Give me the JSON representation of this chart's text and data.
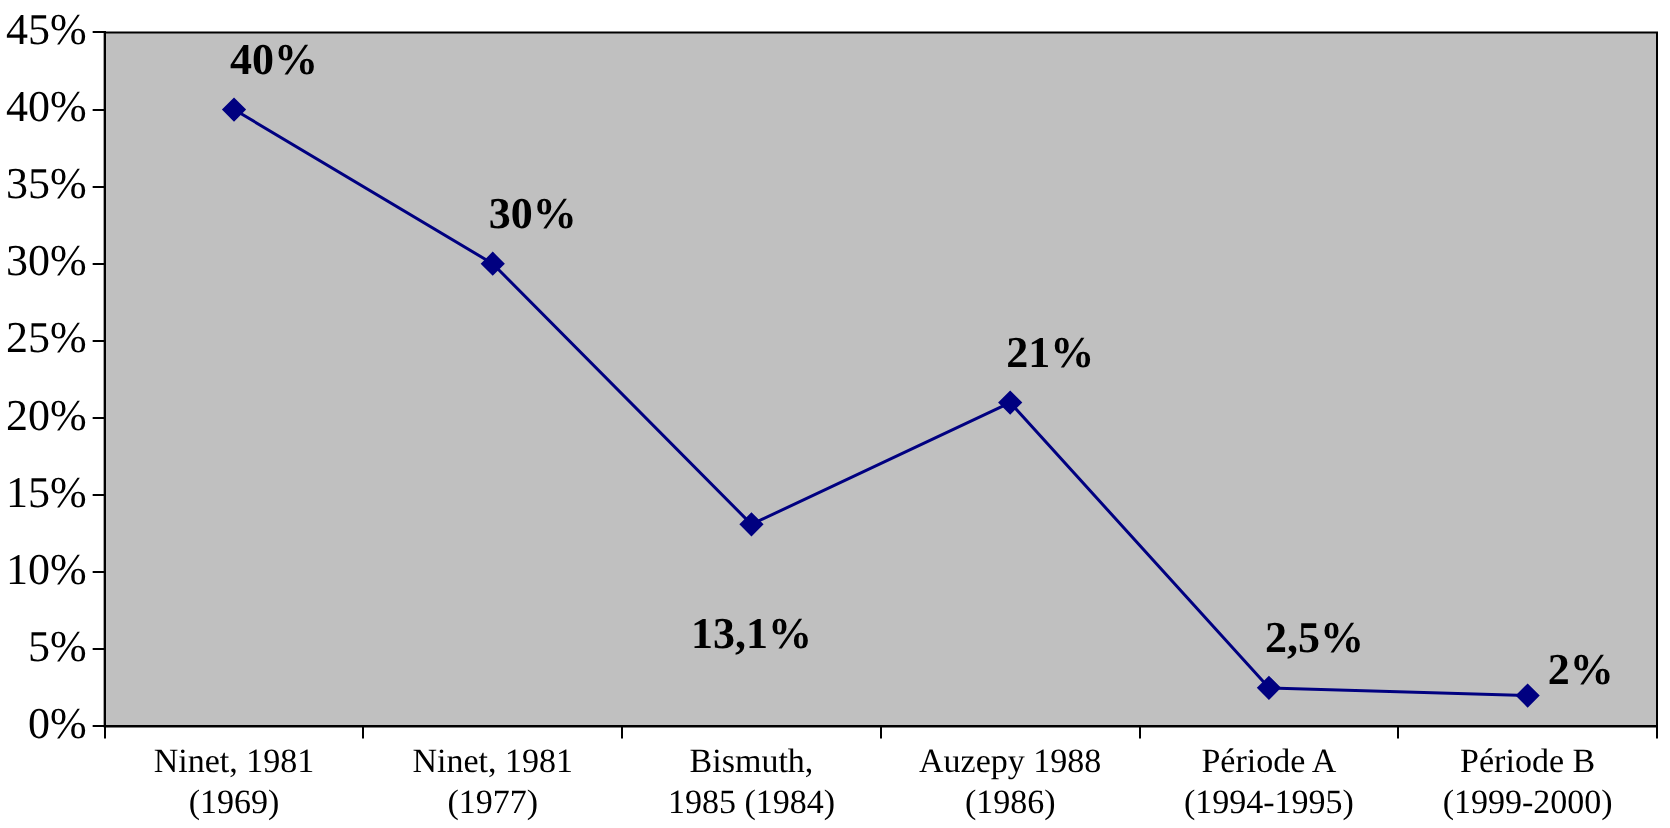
{
  "chart_data": {
    "type": "line",
    "categories": [
      "Ninet, 1981\n(1969)",
      "Ninet, 1981\n(1977)",
      "Bismuth,\n1985 (1984)",
      "Auzepy 1988\n(1986)",
      "Période A\n(1994-1995)",
      "Période B\n(1999-2000)"
    ],
    "series": [
      {
        "color": "#000080",
        "values": [
          40,
          30,
          13.1,
          21,
          2.5,
          2
        ],
        "value_labels": [
          "40%",
          "30%",
          "13,1%",
          "21%",
          "2,5%",
          "2%"
        ]
      }
    ],
    "ylim": [
      0,
      45
    ],
    "yticks": [
      {
        "value": 0,
        "label": "0%"
      },
      {
        "value": 5,
        "label": "5%"
      },
      {
        "value": 10,
        "label": "10%"
      },
      {
        "value": 15,
        "label": "15%"
      },
      {
        "value": 20,
        "label": "20%"
      },
      {
        "value": 25,
        "label": "25%"
      },
      {
        "value": 30,
        "label": "30%"
      },
      {
        "value": 35,
        "label": "35%"
      },
      {
        "value": 40,
        "label": "40%"
      },
      {
        "value": 45,
        "label": "45%"
      }
    ],
    "marker": "diamond",
    "line_style": "solid",
    "legend": false
  }
}
